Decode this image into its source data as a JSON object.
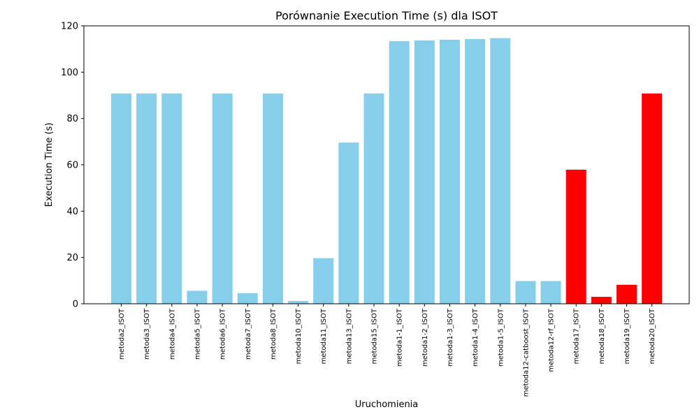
{
  "chart_data": {
    "type": "bar",
    "title": "Porównanie Execution Time (s) dla ISOT",
    "xlabel": "Uruchomienia",
    "ylabel": "Execution Time (s)",
    "ylim": [
      0,
      120
    ],
    "yticks": [
      0,
      20,
      40,
      60,
      80,
      100,
      120
    ],
    "grid": false,
    "categories": [
      "metoda2_ISOT",
      "metoda3_ISOT",
      "metoda4_ISOT",
      "metoda5_ISOT",
      "metoda6_ISOT",
      "metoda7_ISOT",
      "metoda8_ISOT",
      "metoda10_ISOT",
      "metoda11_ISOT",
      "metoda13_ISOT",
      "metoda15_ISOT",
      "metoda1-1_ISOT",
      "metoda1-2_ISOT",
      "metoda1-3_ISOT",
      "metoda1-4_ISOT",
      "metoda1-5_ISOT",
      "metoda12-catboost_ISOT",
      "metoda12-rf_ISOT",
      "metoda17_ISOT",
      "metoda18_ISOT",
      "metoda19_ISOT",
      "metoda20_ISOT"
    ],
    "values": [
      90.8,
      90.8,
      90.8,
      5.6,
      90.8,
      4.6,
      90.8,
      1.2,
      19.7,
      69.6,
      90.8,
      113.4,
      113.7,
      114.0,
      114.3,
      114.7,
      9.8,
      9.8,
      57.9,
      3.0,
      8.2,
      90.8
    ],
    "colors": [
      "#87ceeb",
      "#87ceeb",
      "#87ceeb",
      "#87ceeb",
      "#87ceeb",
      "#87ceeb",
      "#87ceeb",
      "#87ceeb",
      "#87ceeb",
      "#87ceeb",
      "#87ceeb",
      "#87ceeb",
      "#87ceeb",
      "#87ceeb",
      "#87ceeb",
      "#87ceeb",
      "#87ceeb",
      "#87ceeb",
      "#ff0000",
      "#ff0000",
      "#ff0000",
      "#ff0000"
    ]
  }
}
